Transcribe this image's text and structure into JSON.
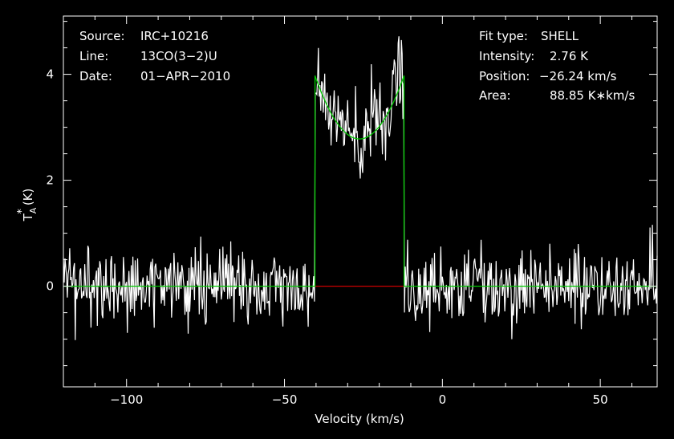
{
  "chart_data": {
    "type": "line",
    "xlabel": "Velocity (km/s)",
    "ylabel_main": "T",
    "ylabel_sub": "A",
    "ylabel_sup": "*",
    "ylabel_unit": "(K)",
    "xlim": [
      -120,
      68
    ],
    "ylim": [
      -1.9,
      5.1
    ],
    "xticks": [
      -100,
      -50,
      0,
      50
    ],
    "xtick_labels": [
      "−100",
      "−50",
      "0",
      "50"
    ],
    "yticks": [
      0,
      2,
      4
    ],
    "ytick_labels": [
      "0",
      "2",
      "4"
    ],
    "colors": {
      "background": "#000000",
      "data": "#ffffff",
      "fit": "#00cc00",
      "baseline": "#cc0000",
      "axes": "#ffffff"
    },
    "info_left": {
      "source_label": "Source:",
      "source_value": "IRC+10216",
      "line_label": "Line:",
      "line_value": "13CO(3−2)U",
      "date_label": "Date:",
      "date_value": "01−APR−2010"
    },
    "info_right": {
      "fit_label": "Fit type:",
      "fit_value": "SHELL",
      "intensity_label": "Intensity:",
      "intensity_value": "2.76 K",
      "position_label": "Position:",
      "position_value": "−26.24 km/s",
      "area_label": "Area:",
      "area_value": "88.85 K∗km/s"
    },
    "fit_model": {
      "type": "shell",
      "v_center": -26.24,
      "half_width": 14.1,
      "horn_ratio": 0.43,
      "peak_center": 2.78,
      "baseline": 0
    },
    "noise": {
      "rms": 0.38,
      "channel_width": 0.25,
      "seed": 42
    },
    "baseline_segment": [
      -40.4,
      -12.1
    ]
  }
}
